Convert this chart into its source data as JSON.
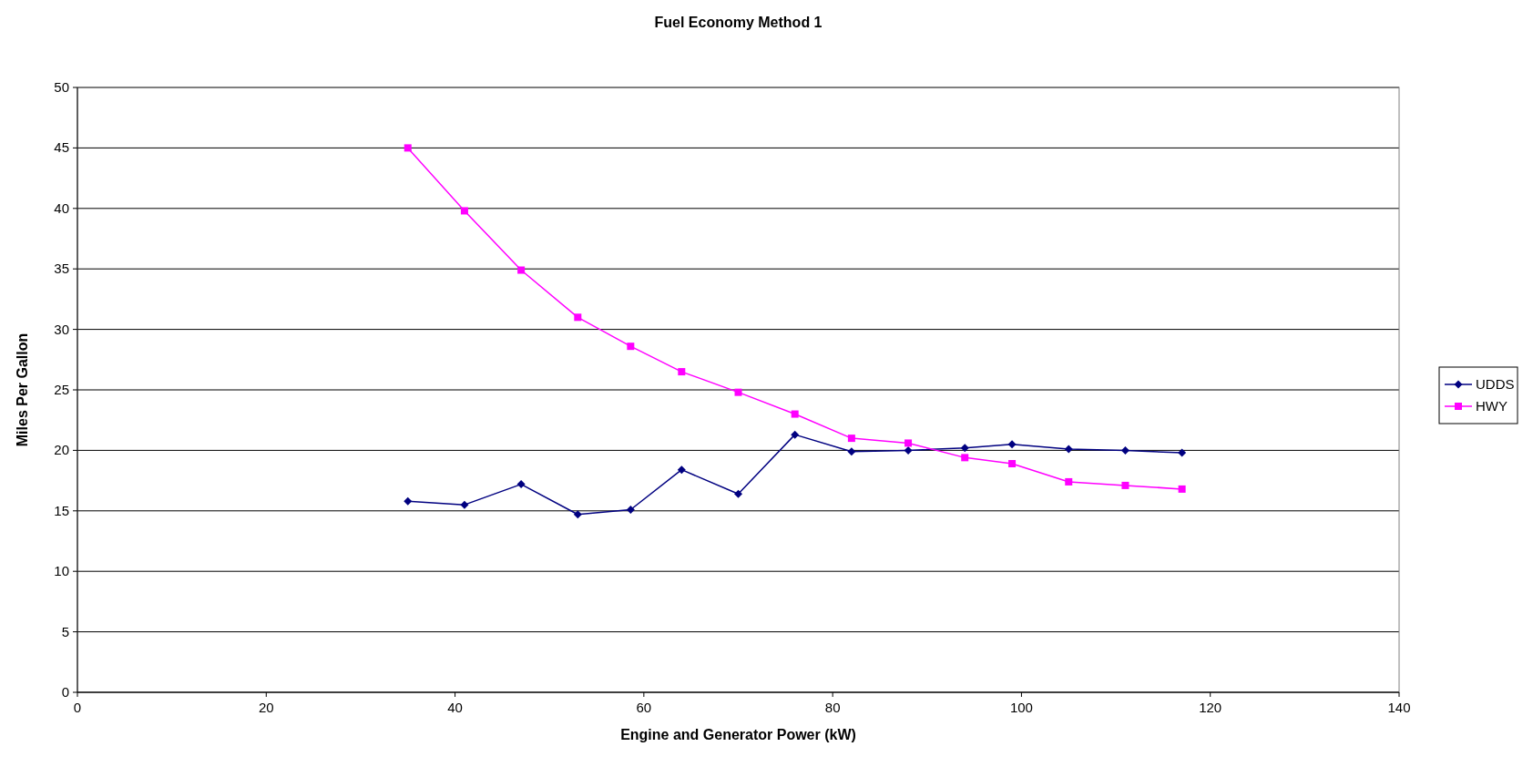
{
  "chart_data": {
    "type": "line",
    "title": "Fuel Economy Method 1",
    "xlabel": "Engine and Generator Power (kW)",
    "ylabel": "Miles Per Gallon",
    "xlim": [
      0,
      140
    ],
    "xticks": [
      0,
      20,
      40,
      60,
      80,
      100,
      120,
      140
    ],
    "ylim": [
      0,
      50
    ],
    "yticks": [
      0,
      5,
      10,
      15,
      20,
      25,
      30,
      35,
      40,
      45,
      50
    ],
    "grid": "y",
    "legend": "right",
    "series": [
      {
        "name": "UDDS",
        "color": "#000080",
        "marker": "diamond",
        "x": [
          35,
          41,
          47,
          53,
          58.6,
          64,
          70,
          76,
          82,
          88,
          94,
          99,
          105,
          111,
          117
        ],
        "values": [
          15.8,
          15.5,
          17.2,
          14.7,
          15.1,
          18.4,
          16.4,
          21.3,
          19.9,
          20.0,
          20.2,
          20.5,
          20.1,
          20.0,
          19.8
        ]
      },
      {
        "name": "HWY",
        "color": "#ff00ff",
        "marker": "square",
        "x": [
          35,
          41,
          47,
          53,
          58.6,
          64,
          70,
          76,
          82,
          88,
          94,
          99,
          105,
          111,
          117
        ],
        "values": [
          45.0,
          39.8,
          34.9,
          31.0,
          28.6,
          26.5,
          24.8,
          23.0,
          21.0,
          20.6,
          19.4,
          18.9,
          17.4,
          17.1,
          16.8
        ]
      }
    ]
  }
}
